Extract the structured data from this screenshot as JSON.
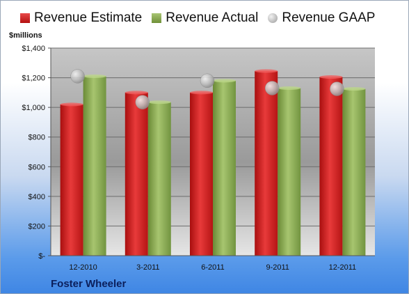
{
  "chart_data": {
    "type": "bar",
    "categories": [
      "12-2010",
      "3-2011",
      "6-2011",
      "9-2011",
      "12-2011"
    ],
    "series": [
      {
        "name": "Revenue Estimate",
        "type": "bar",
        "color": "#d42020",
        "values": [
          1020,
          1100,
          1100,
          1245,
          1205
        ]
      },
      {
        "name": "Revenue Actual",
        "type": "bar",
        "color": "#8faf55",
        "values": [
          1210,
          1035,
          1180,
          1130,
          1125
        ]
      },
      {
        "name": "Revenue GAAP",
        "type": "scatter",
        "color": "#b8b8b8",
        "values": [
          1210,
          1035,
          1180,
          1130,
          1125
        ]
      }
    ],
    "ylabel": "$millions",
    "ylim": [
      0,
      1400
    ],
    "yticks": [
      0,
      200,
      400,
      600,
      800,
      1000,
      1200,
      1400
    ],
    "ytick_labels": [
      "$-",
      "$200",
      "$400",
      "$600",
      "$800",
      "$1,000",
      "$1,200",
      "$1,400"
    ],
    "grid": true,
    "legend_position": "top"
  },
  "footer": {
    "company": "Foster Wheeler"
  }
}
